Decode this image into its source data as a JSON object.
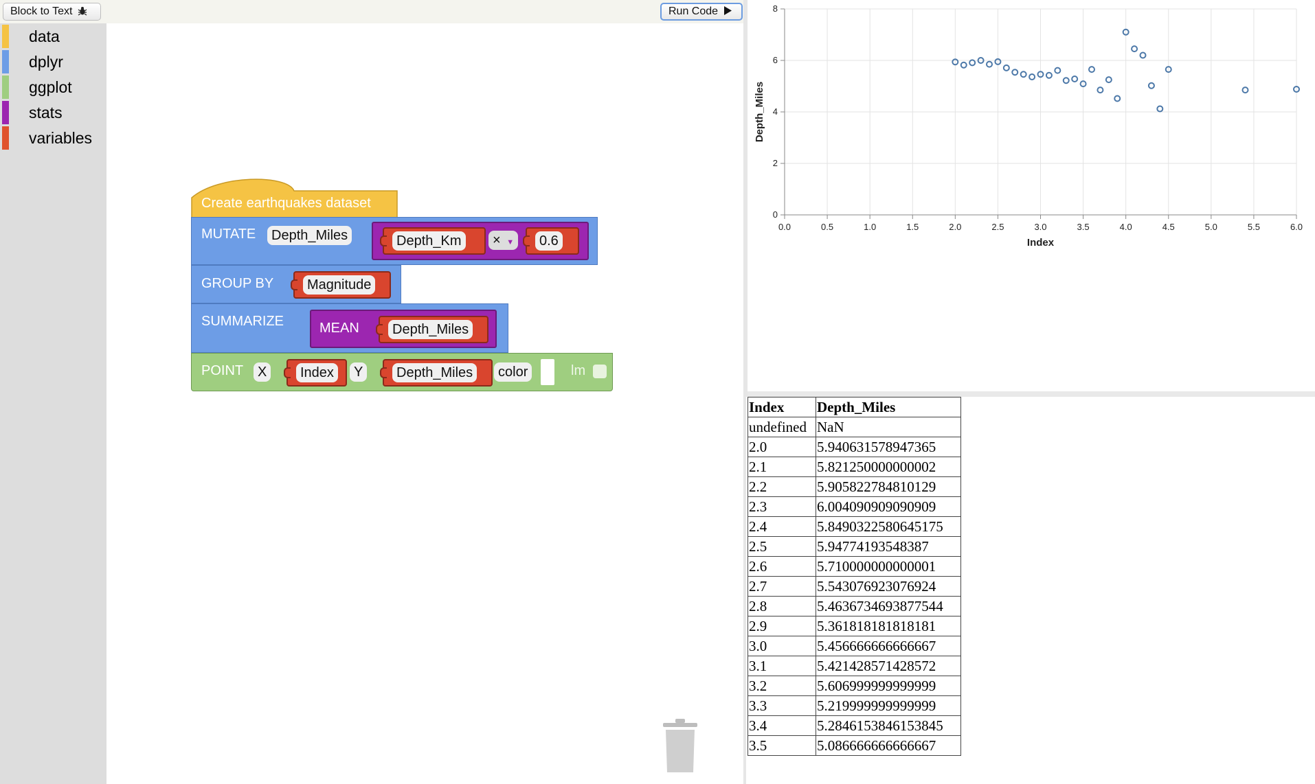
{
  "toolbar": {
    "block_to_text_label": "Block to Text",
    "run_code_label": "Run Code"
  },
  "palette": {
    "categories": [
      {
        "label": "data",
        "color": "#f5c344"
      },
      {
        "label": "dplyr",
        "color": "#6d9de6"
      },
      {
        "label": "ggplot",
        "color": "#9fce80"
      },
      {
        "label": "stats",
        "color": "#9c26b0"
      },
      {
        "label": "variables",
        "color": "#e0532d"
      }
    ]
  },
  "blocks": {
    "dataset_label": "Create earthquakes dataset",
    "mutate": {
      "keyword": "MUTATE",
      "name": "Depth_Miles",
      "left": "Depth_Km",
      "op": "×",
      "right": "0.6"
    },
    "group_by": {
      "keyword": "GROUP BY",
      "var": "Magnitude"
    },
    "summarize": {
      "keyword": "SUMMARIZE",
      "fn": "MEAN",
      "var": "Depth_Miles"
    },
    "point": {
      "keyword": "POINT",
      "x_label": "X",
      "x_var": "Index",
      "y_label": "Y",
      "y_var": "Depth_Miles",
      "color_label": "color",
      "lm_label": "lm"
    }
  },
  "chart_data": {
    "type": "scatter",
    "xlabel": "Index",
    "ylabel": "Depth_Miles",
    "xlim": [
      0,
      6
    ],
    "ylim": [
      0,
      8
    ],
    "x_ticks": [
      "0.0",
      "0.5",
      "1.0",
      "1.5",
      "2.0",
      "2.5",
      "3.0",
      "3.5",
      "4.0",
      "4.5",
      "5.0",
      "5.5",
      "6.0"
    ],
    "y_ticks": [
      "0",
      "2",
      "4",
      "6",
      "8"
    ],
    "grid": true,
    "color": "#4c78a8",
    "x": [
      2.0,
      2.1,
      2.2,
      2.3,
      2.4,
      2.5,
      2.6,
      2.7,
      2.8,
      2.9,
      3.0,
      3.1,
      3.2,
      3.3,
      3.4,
      3.5,
      3.6,
      3.7,
      3.8,
      3.9,
      4.0,
      4.1,
      4.2,
      4.3,
      4.4,
      4.5,
      5.4,
      6.0
    ],
    "y": [
      5.94,
      5.82,
      5.91,
      6.0,
      5.85,
      5.95,
      5.71,
      5.54,
      5.46,
      5.36,
      5.46,
      5.42,
      5.61,
      5.22,
      5.28,
      5.09,
      5.65,
      4.85,
      5.25,
      4.52,
      7.1,
      6.45,
      6.2,
      5.02,
      4.12,
      5.65,
      4.85,
      4.88
    ]
  },
  "table": {
    "headers": [
      "Index",
      "Depth_Miles"
    ],
    "rows": [
      [
        "undefined",
        "NaN"
      ],
      [
        "2.0",
        "5.940631578947365"
      ],
      [
        "2.1",
        "5.821250000000002"
      ],
      [
        "2.2",
        "5.905822784810129"
      ],
      [
        "2.3",
        "6.004090909090909"
      ],
      [
        "2.4",
        "5.8490322580645175"
      ],
      [
        "2.5",
        "5.94774193548387"
      ],
      [
        "2.6",
        "5.710000000000001"
      ],
      [
        "2.7",
        "5.543076923076924"
      ],
      [
        "2.8",
        "5.4636734693877544"
      ],
      [
        "2.9",
        "5.361818181818181"
      ],
      [
        "3.0",
        "5.456666666666667"
      ],
      [
        "3.1",
        "5.421428571428572"
      ],
      [
        "3.2",
        "5.606999999999999"
      ],
      [
        "3.3",
        "5.219999999999999"
      ],
      [
        "3.4",
        "5.2846153846153845"
      ],
      [
        "3.5",
        "5.086666666666667"
      ]
    ]
  }
}
